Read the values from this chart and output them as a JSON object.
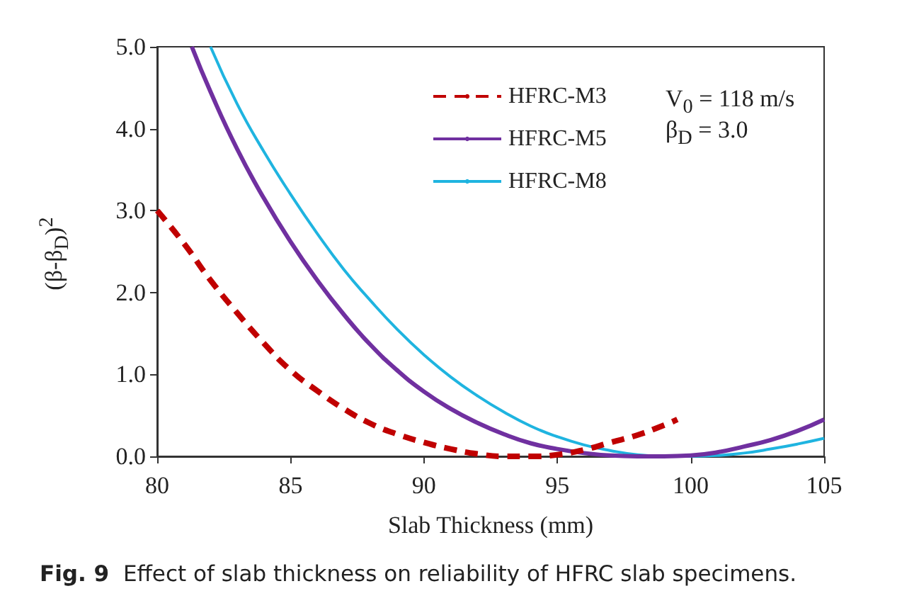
{
  "chart_data": {
    "type": "line",
    "xlabel": "Slab Thickness (mm)",
    "ylabel": "(β-β$_{D}$)$^{2}$",
    "annotations": [
      "V$_{0}$ = 118 m/s",
      "β$_{D}$ = 3.0",
      "Fig. 9",
      "Effect of slab thickness on reliability of HFRC slab specimens."
    ],
    "xlim": [
      80,
      105
    ],
    "xticks": [
      80,
      85,
      90,
      95,
      100,
      105
    ],
    "ylim": [
      0,
      5
    ],
    "yticks": [
      {
        "value": 0,
        "label": "0.0"
      },
      {
        "value": 1,
        "label": "1.0"
      },
      {
        "value": 2,
        "label": "2.0"
      },
      {
        "value": 3,
        "label": "3.0"
      },
      {
        "value": 4,
        "label": "4.0"
      },
      {
        "value": 5,
        "label": "5.0"
      }
    ],
    "grid": false,
    "legend": "top right",
    "marker": "none",
    "series": [
      {
        "name": "HFRC-M3",
        "color": "#c00000",
        "line_style": "dashed",
        "x": [
          80,
          81,
          82,
          83,
          84,
          85,
          86,
          87,
          88,
          89,
          90,
          91,
          92,
          93,
          94,
          95,
          96,
          97,
          98,
          99,
          99.5
        ],
        "values": [
          3.0,
          2.6,
          2.15,
          1.75,
          1.38,
          1.05,
          0.8,
          0.58,
          0.4,
          0.27,
          0.17,
          0.09,
          0.03,
          0.0,
          0.0,
          0.02,
          0.08,
          0.17,
          0.26,
          0.38,
          0.45
        ]
      },
      {
        "name": "HFRC-M5",
        "color": "#7030a0",
        "line_style": "solid",
        "x": [
          81.3,
          82,
          83,
          84,
          85,
          86,
          87,
          88,
          89,
          90,
          91,
          92,
          93,
          94,
          95,
          96,
          97,
          98,
          99,
          100,
          101,
          102,
          103,
          104,
          105
        ],
        "values": [
          5.0,
          4.45,
          3.75,
          3.15,
          2.62,
          2.15,
          1.73,
          1.36,
          1.05,
          0.79,
          0.58,
          0.41,
          0.27,
          0.16,
          0.09,
          0.04,
          0.01,
          0.0,
          0.0,
          0.01,
          0.05,
          0.12,
          0.2,
          0.31,
          0.45
        ]
      },
      {
        "name": "HFRC-M8",
        "color": "#1fb4e0",
        "line_style": "solid",
        "x": [
          82.0,
          83,
          84,
          85,
          86,
          87,
          88,
          89,
          90,
          91,
          92,
          93,
          94,
          95,
          96,
          97,
          98,
          99,
          100,
          101,
          102,
          103,
          104,
          105
        ],
        "values": [
          5.0,
          4.3,
          3.72,
          3.2,
          2.72,
          2.28,
          1.9,
          1.55,
          1.24,
          0.97,
          0.74,
          0.54,
          0.37,
          0.24,
          0.14,
          0.07,
          0.02,
          0.0,
          0.0,
          0.01,
          0.04,
          0.09,
          0.15,
          0.22
        ]
      }
    ]
  }
}
